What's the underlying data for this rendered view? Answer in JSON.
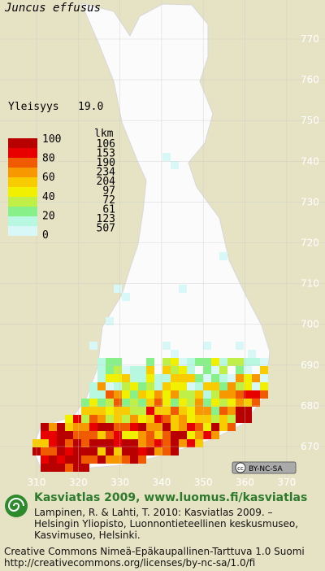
{
  "header": {
    "species": "Juncus effusus",
    "frequency_label": "Yleisyys",
    "frequency": "19.0"
  },
  "legend": {
    "count_header": "lkm",
    "scale_labels": [
      100,
      80,
      60,
      40,
      20,
      0
    ],
    "colors": [
      "#b80000",
      "#e80000",
      "#f05a00",
      "#f89800",
      "#f8cc00",
      "#f0f000",
      "#c0f048",
      "#88f088",
      "#b8f8e0",
      "#d8f8f8"
    ],
    "counts": [
      106,
      153,
      190,
      234,
      204,
      97,
      72,
      61,
      123,
      507
    ]
  },
  "grid": {
    "x_labels": [
      310,
      320,
      330,
      340,
      350,
      360,
      370
    ],
    "y_labels": [
      770,
      760,
      750,
      740,
      730,
      720,
      710,
      700,
      690,
      680,
      670
    ]
  },
  "license_badge": "BY-NC-SA",
  "footer": {
    "heading": "Kasviatlas 2009, www.luomus.fi/kasviatlas",
    "citation": [
      "Lampinen, R. & Lahti, T. 2010: Kasviatlas 2009. –",
      "Helsingin Yliopisto, Luonnontieteellinen keskusmuseo,",
      "Kasvimuseo, Helsinki."
    ],
    "license": "Creative Commons Nimeä-Epäkaupallinen-Tarttuva 1.0 Suomi",
    "license_url": "http://creativecommons.org/licenses/by-nc-sa/1.0/fi"
  }
}
